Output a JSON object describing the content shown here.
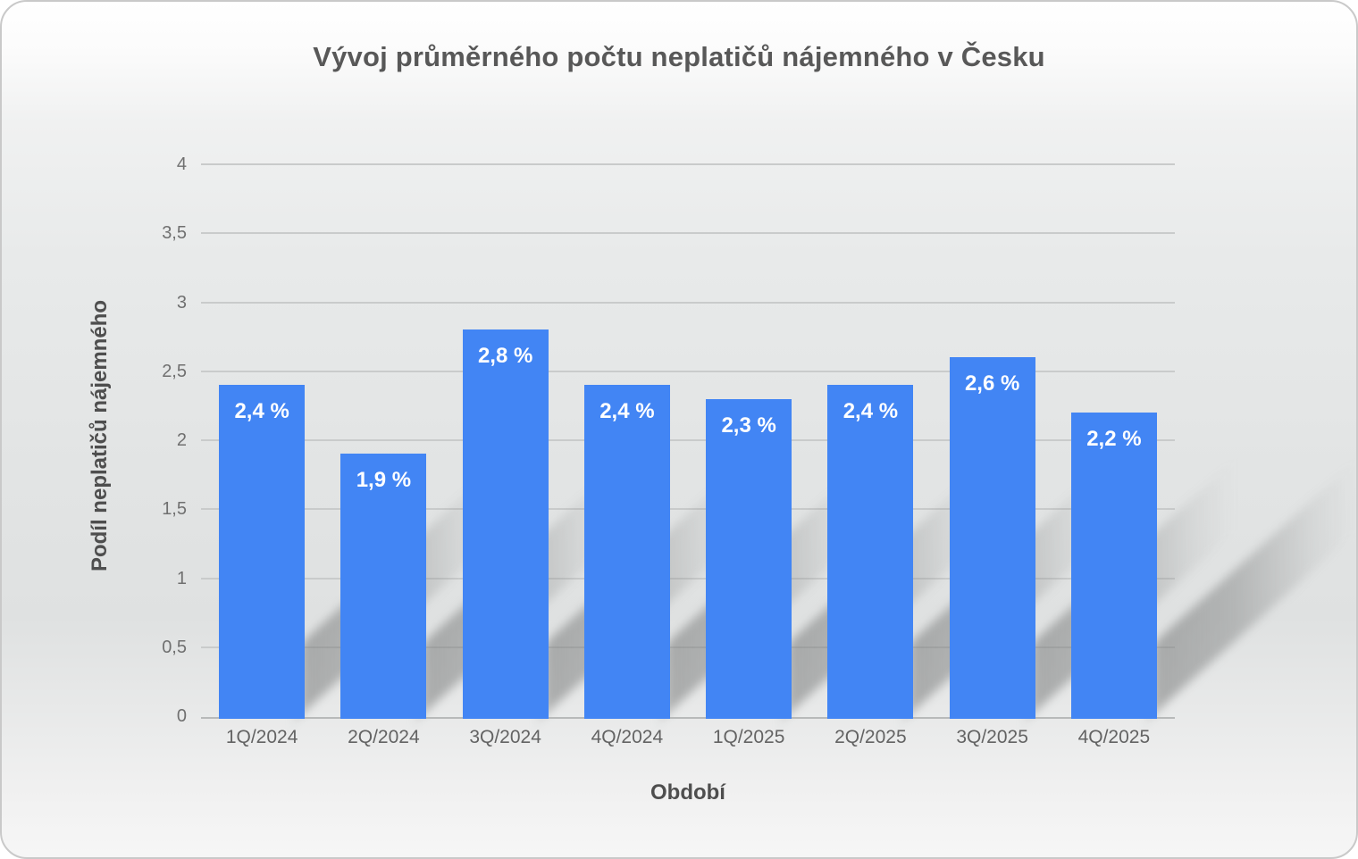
{
  "chart_data": {
    "type": "bar",
    "title": "Vývoj průměrného počtu neplatičů nájemného v Česku",
    "xlabel": "Období",
    "ylabel": "Podíl neplatičů nájemného",
    "categories": [
      "1Q/2024",
      "2Q/2024",
      "3Q/2024",
      "4Q/2024",
      "1Q/2025",
      "2Q/2025",
      "3Q/2025",
      "4Q/2025"
    ],
    "values": [
      2.4,
      1.9,
      2.8,
      2.4,
      2.3,
      2.4,
      2.6,
      2.2
    ],
    "value_labels": [
      "2,4 %",
      "1,9 %",
      "2,8 %",
      "2,4 %",
      "2,3 %",
      "2,4 %",
      "2,6 %",
      "2,2 %"
    ],
    "ylim": [
      0,
      4
    ],
    "ytick_values": [
      0,
      0.5,
      1,
      1.5,
      2,
      2.5,
      3,
      3.5,
      4
    ],
    "ytick_labels": [
      "0",
      "0,5",
      "1",
      "1,5",
      "2",
      "2,5",
      "3",
      "3,5",
      "4"
    ],
    "grid": "horizontal",
    "legend": "none",
    "colors": {
      "bar": "#4285F4",
      "bar_value_label": "#ffffff",
      "title": "#585858",
      "axis_title": "#4e4e4e",
      "tick_label": "#6b6b6b",
      "gridline": "#c9cbcb"
    }
  }
}
